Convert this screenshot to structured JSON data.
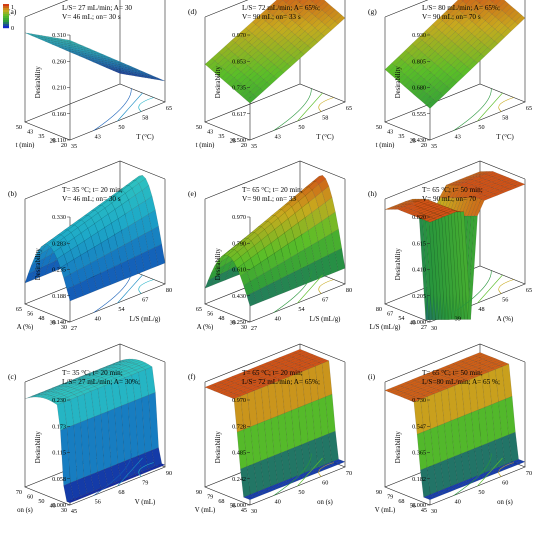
{
  "panels": [
    {
      "id": "a",
      "label": "(a)",
      "cond": [
        "L/S= 27 mL/min;   A= 30",
        "V= 46 mL;         on= 30 s"
      ],
      "zlabel": "Desirability",
      "zticks": [
        "0.310",
        "0.260",
        "0.210",
        "0.160",
        "0.110"
      ],
      "xlabel": "T (°C)",
      "xticks": [
        "65",
        "58",
        "50",
        "43",
        "35"
      ],
      "ylabel": "t (min)",
      "yticks": [
        "50",
        "43",
        "35",
        "28",
        "20"
      ],
      "colors": "blue",
      "legend": {
        "max": "1",
        "min": "0"
      }
    },
    {
      "id": "d",
      "label": "(d)",
      "cond": [
        "L/S= 72 mL/min;   A= 65%;",
        "V= 90 mL;          on= 33 s"
      ],
      "zlabel": "Desirability",
      "zticks": [
        "0.970",
        "0.853",
        "0.735",
        "0.617",
        "0.500"
      ],
      "xlabel": "T (°C)",
      "xticks": [
        "65",
        "58",
        "50",
        "43",
        "35"
      ],
      "ylabel": "t (min)",
      "yticks": [
        "50",
        "43",
        "35",
        "28",
        "20"
      ],
      "colors": "gyr"
    },
    {
      "id": "g",
      "label": "(g)",
      "cond": [
        "L/S= 80 mL/min;   A= 65%;",
        "V= 90 mL;          on= 70 s"
      ],
      "zlabel": "Desirability",
      "zticks": [
        "0.930",
        "0.805",
        "0.680",
        "0.555",
        "0.430"
      ],
      "xlabel": "T (°C)",
      "xticks": [
        "65",
        "58",
        "50",
        "43",
        "35"
      ],
      "ylabel": "t (min)",
      "yticks": [
        "50",
        "43",
        "35",
        "28",
        "20"
      ],
      "colors": "gyr"
    },
    {
      "id": "b",
      "label": "(b)",
      "cond": [
        "T= 35 °C;    t= 20 min;",
        "V= 46 mL;    on= 30 s"
      ],
      "zlabel": "Desirability",
      "zticks": [
        "0.330",
        "0.283",
        "0.235",
        "0.188",
        "0.140"
      ],
      "xlabel": "L/S (mL/g)",
      "xticks": [
        "80",
        "67",
        "54",
        "40",
        "27"
      ],
      "ylabel": "A (%)",
      "yticks": [
        "65",
        "56",
        "48",
        "39",
        "30"
      ],
      "colors": "blue"
    },
    {
      "id": "e",
      "label": "(e)",
      "cond": [
        "T= 65 °C;    t= 20 min;",
        "V= 90 mL;    on= 33"
      ],
      "zlabel": "Desirability",
      "zticks": [
        "0.970",
        "0.790",
        "0.610",
        "0.430",
        "0.250"
      ],
      "xlabel": "L/S (mL/g)",
      "xticks": [
        "80",
        "67",
        "54",
        "40",
        "27"
      ],
      "ylabel": "A (%)",
      "yticks": [
        "65",
        "56",
        "48",
        "39",
        "30"
      ],
      "colors": "gyr"
    },
    {
      "id": "h",
      "label": "(h)",
      "cond": [
        "T= 65 °C;    t= 50 min;",
        "V= 90 mL;    on= 70"
      ],
      "zlabel": "Desirability",
      "zticks": [
        "0.820",
        "0.615",
        "0.410",
        "0.205",
        "0.000"
      ],
      "xlabel": "A (%)",
      "xticks": [
        "65",
        "56",
        "48",
        "39",
        "30"
      ],
      "ylabel": "L/S (mL/g)",
      "yticks": [
        "80",
        "67",
        "54",
        "40",
        "27"
      ],
      "colors": "gyr"
    },
    {
      "id": "c",
      "label": "(c)",
      "cond": [
        "T= 35 °C;    t= 20 min;",
        "L/S= 27 mL/min;  A= 30%;"
      ],
      "zlabel": "Desirability",
      "zticks": [
        "0.230",
        "0.173",
        "0.115",
        "0.058",
        "0.000"
      ],
      "xlabel": "V (mL)",
      "xticks": [
        "90",
        "79",
        "68",
        "56",
        "45"
      ],
      "ylabel": "on (s)",
      "yticks": [
        "70",
        "60",
        "50",
        "40",
        "30"
      ],
      "colors": "blue"
    },
    {
      "id": "f",
      "label": "(f)",
      "cond": [
        "T= 65 °C;    t= 20 min;",
        "L/S= 72 mL/min;  A= 65%;"
      ],
      "zlabel": "Desirability",
      "zticks": [
        "0.970",
        "0.728",
        "0.485",
        "0.242",
        "0.000"
      ],
      "xlabel": "on (s)",
      "xticks": [
        "70",
        "60",
        "50",
        "40",
        "30"
      ],
      "ylabel": "V (mL)",
      "yticks": [
        "90",
        "79",
        "68",
        "56",
        "45"
      ],
      "colors": "gyr"
    },
    {
      "id": "i",
      "label": "(i)",
      "cond": [
        "T= 65 °C;    t= 50 min;",
        "L/S=80 mL/min;  A= 65 %;"
      ],
      "zlabel": "Desirability",
      "zticks": [
        "0.730",
        "0.547",
        "0.365",
        "0.182",
        "0.000"
      ],
      "xlabel": "on (s)",
      "xticks": [
        "70",
        "60",
        "50",
        "40",
        "30"
      ],
      "ylabel": "V (mL)",
      "yticks": [
        "90",
        "79",
        "68",
        "56",
        "45"
      ],
      "colors": "gyr"
    }
  ],
  "chart_data": [
    {
      "type": "surface",
      "panel": "a",
      "x": "T (°C)",
      "y": "t (min)",
      "z": "Desirability",
      "zlim": [
        0.11,
        0.31
      ],
      "note": "desirability decreases from 0.310 toward 0.110"
    },
    {
      "type": "surface",
      "panel": "d",
      "x": "T (°C)",
      "y": "t (min)",
      "z": "Desirability",
      "zlim": [
        0.5,
        0.97
      ]
    },
    {
      "type": "surface",
      "panel": "g",
      "x": "T (°C)",
      "y": "t (min)",
      "z": "Desirability",
      "zlim": [
        0.43,
        0.93
      ]
    },
    {
      "type": "surface",
      "panel": "b",
      "x": "L/S (mL/g)",
      "y": "A (%)",
      "z": "Desirability",
      "zlim": [
        0.14,
        0.33
      ]
    },
    {
      "type": "surface",
      "panel": "e",
      "x": "L/S (mL/g)",
      "y": "A (%)",
      "z": "Desirability",
      "zlim": [
        0.25,
        0.97
      ]
    },
    {
      "type": "surface",
      "panel": "h",
      "x": "A (%)",
      "y": "L/S (mL/g)",
      "z": "Desirability",
      "zlim": [
        0.0,
        0.82
      ]
    },
    {
      "type": "surface",
      "panel": "c",
      "x": "V (mL)",
      "y": "on (s)",
      "z": "Desirability",
      "zlim": [
        0.0,
        0.23
      ]
    },
    {
      "type": "surface",
      "panel": "f",
      "x": "on (s)",
      "y": "V (mL)",
      "z": "Desirability",
      "zlim": [
        0.0,
        0.97
      ]
    },
    {
      "type": "surface",
      "panel": "i",
      "x": "on (s)",
      "y": "V (mL)",
      "z": "Desirability",
      "zlim": [
        0.0,
        0.73
      ]
    }
  ]
}
